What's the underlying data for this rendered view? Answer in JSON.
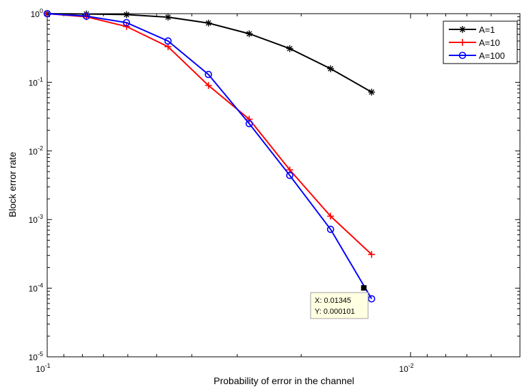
{
  "chart_data": {
    "type": "line",
    "title": "",
    "xlabel": "Probability of error in the channel",
    "ylabel": "Block error rate",
    "x_scale": "log",
    "y_scale": "log",
    "x_reversed": true,
    "xlim": [
      0.1,
      0.005
    ],
    "ylim": [
      1e-05,
      1
    ],
    "grid": false,
    "legend_position": "top-right",
    "x_ticks": [
      {
        "value": 0.1,
        "base": "10",
        "exp": "-1"
      },
      {
        "value": 0.01,
        "base": "10",
        "exp": "-2"
      }
    ],
    "y_ticks": [
      {
        "value": 1,
        "base": "10",
        "exp": "0"
      },
      {
        "value": 0.1,
        "base": "10",
        "exp": "-1"
      },
      {
        "value": 0.01,
        "base": "10",
        "exp": "-2"
      },
      {
        "value": 0.001,
        "base": "10",
        "exp": "-3"
      },
      {
        "value": 0.0001,
        "base": "10",
        "exp": "-4"
      },
      {
        "value": 1e-05,
        "base": "10",
        "exp": "-5"
      }
    ],
    "series": [
      {
        "name": "A=1",
        "color": "#000000",
        "marker": "asterisk",
        "x": [
          0.1,
          0.078,
          0.0605,
          0.0465,
          0.036,
          0.0278,
          0.0215,
          0.0166,
          0.0128
        ],
        "y": [
          1.0,
          0.99,
          0.97,
          0.89,
          0.73,
          0.51,
          0.31,
          0.158,
          0.072
        ]
      },
      {
        "name": "A=10",
        "color": "#ff0000",
        "marker": "plus",
        "x": [
          0.1,
          0.078,
          0.0605,
          0.0465,
          0.036,
          0.0278,
          0.0215,
          0.0166,
          0.0128
        ],
        "y": [
          1.0,
          0.9,
          0.65,
          0.33,
          0.09,
          0.029,
          0.0053,
          0.00112,
          0.00031
        ]
      },
      {
        "name": "A=100",
        "color": "#0000ff",
        "marker": "circle",
        "x": [
          0.1,
          0.078,
          0.0605,
          0.0465,
          0.036,
          0.0278,
          0.0215,
          0.0166,
          0.0128
        ],
        "y": [
          1.0,
          0.92,
          0.74,
          0.4,
          0.13,
          0.025,
          0.0044,
          0.00072,
          7e-05
        ]
      }
    ],
    "datatip": {
      "x": 0.01345,
      "y": 0.000101,
      "x_text": "X: 0.01345",
      "y_text": "Y: 0.000101"
    }
  }
}
